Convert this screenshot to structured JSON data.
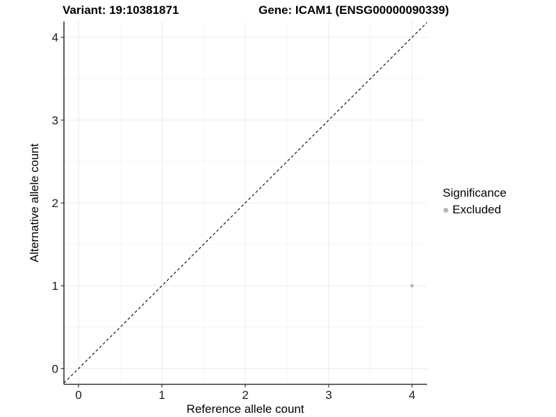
{
  "header": {
    "variant_title": "Variant: 19:10381871",
    "gene_title": "Gene: ICAM1 (ENSG00000090339)"
  },
  "chart_data": {
    "type": "scatter",
    "titles": [
      "Variant: 19:10381871",
      "Gene: ICAM1 (ENSG00000090339)"
    ],
    "xlabel": "Reference allele count",
    "ylabel": "Alternative allele count",
    "xticks": [
      0,
      1,
      2,
      3,
      4
    ],
    "yticks": [
      0,
      1,
      2,
      3,
      4
    ],
    "xlim": [
      -0.175,
      4.18
    ],
    "ylim": [
      -0.19,
      4.19
    ],
    "grid": {
      "major": true,
      "minor": true
    },
    "reference_line": {
      "type": "identity",
      "style": "dashed",
      "color": "#000000"
    },
    "series": [
      {
        "name": "Excluded",
        "color": "#b5b5b5",
        "points": [
          [
            4,
            1
          ]
        ]
      }
    ],
    "legend": {
      "title": "Significance",
      "position": "right",
      "items": [
        {
          "label": "Excluded",
          "color": "#b5b5b5"
        }
      ]
    }
  },
  "colors": {
    "background": "#ffffff",
    "axis_line": "#333333",
    "tick_mark": "#333333",
    "tick_text": "#1a1a1a",
    "grid_major": "#ebebeb",
    "grid_minor": "#f5f5f5",
    "reference_line": "#000000",
    "point": "#b5b5b5"
  }
}
